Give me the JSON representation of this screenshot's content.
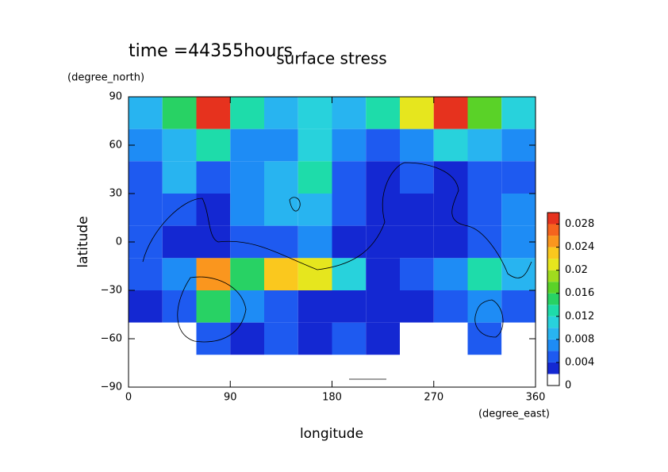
{
  "chart_data": {
    "type": "contour",
    "title": "surface stress",
    "subtitle": "time =44355hours",
    "x_label": "longitude",
    "x_unit": "(degree_east)",
    "y_label": "latitude",
    "y_unit": "(degree_north)",
    "xlim": [
      0,
      360
    ],
    "ylim": [
      -90,
      90
    ],
    "xticks": [
      0,
      90,
      180,
      270,
      360
    ],
    "yticks": [
      {
        "value": -90,
        "label": "−90"
      },
      {
        "value": -60,
        "label": "−60"
      },
      {
        "value": -30,
        "label": "−30"
      },
      0,
      30,
      60,
      90
    ],
    "x": [
      15,
      45,
      75,
      105,
      135,
      165,
      195,
      225,
      255,
      285,
      315,
      345
    ],
    "y": [
      80,
      60,
      40,
      20,
      0,
      -20,
      -40,
      -60,
      -80
    ],
    "z": [
      [
        0.008,
        0.014,
        0.03,
        0.012,
        0.008,
        0.01,
        0.008,
        0.012,
        0.02,
        0.03,
        0.016,
        0.01
      ],
      [
        0.006,
        0.008,
        0.012,
        0.006,
        0.006,
        0.01,
        0.006,
        0.004,
        0.006,
        0.01,
        0.008,
        0.006
      ],
      [
        0.004,
        0.008,
        0.004,
        0.006,
        0.008,
        0.012,
        0.004,
        0.002,
        0.004,
        0.003,
        0.004,
        0.004
      ],
      [
        0.004,
        0.004,
        0.003,
        0.006,
        0.008,
        0.008,
        0.004,
        0.002,
        0.003,
        0.002,
        0.004,
        0.006
      ],
      [
        0.004,
        0.003,
        0.002,
        0.004,
        0.005,
        0.006,
        0.003,
        0.002,
        0.003,
        0.003,
        0.004,
        0.006
      ],
      [
        0.004,
        0.006,
        0.024,
        0.014,
        0.022,
        0.02,
        0.01,
        0.002,
        0.004,
        0.006,
        0.012,
        0.008
      ],
      [
        0.002,
        0.004,
        0.014,
        0.006,
        0.004,
        0.002,
        0.002,
        0.003,
        0.002,
        0.004,
        0.006,
        0.004
      ],
      [
        0,
        0,
        0.004,
        0.002,
        0.004,
        0.002,
        0.004,
        0.002,
        0,
        0,
        0.004,
        0
      ],
      [
        0,
        0,
        0,
        0,
        0,
        0,
        0,
        0,
        0,
        0,
        0,
        0
      ]
    ],
    "clim": [
      0,
      0.03
    ],
    "cticks": [
      0,
      0.004,
      0.008,
      0.012,
      0.016,
      0.02,
      0.024,
      0.028
    ],
    "colors": [
      "#ffffff",
      "#1428d2",
      "#1e5af0",
      "#1e8cf5",
      "#28b4f0",
      "#28d2dc",
      "#1edcaa",
      "#28d264",
      "#5ad228",
      "#a0dc1e",
      "#e6e61e",
      "#fac81e",
      "#fa961e",
      "#f5641e",
      "#e6321e"
    ]
  }
}
